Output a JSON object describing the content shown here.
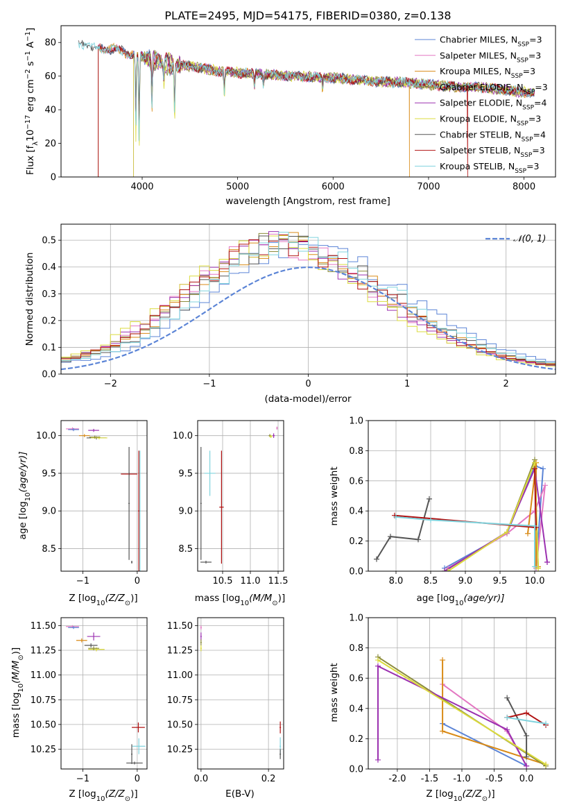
{
  "chart_data": [
    {
      "type": "line",
      "title": "PLATE=2495, MJD=54175, FIBERID=0380, z=0.138",
      "xlabel": "wavelength [Angstrom, rest frame]",
      "ylabel": "Flux [f",
      "ylabel_sub": "λ",
      "ylabel_rest": "10",
      "ylabel_exp": "−17",
      "ylabel_units": " erg cm",
      "ylabel_units_exp1": "−2",
      "ylabel_units_mid": " s",
      "ylabel_units_exp2": "−1",
      "ylabel_units_end": " A",
      "ylabel_units_exp3": "−1",
      "ylabel_units_close": "]",
      "xlim": [
        3150,
        8330
      ],
      "ylim": [
        0,
        90
      ],
      "xticks": [
        4000,
        5000,
        6000,
        7000,
        8000
      ],
      "yticks": [
        0,
        20,
        40,
        60,
        80
      ],
      "grid": false,
      "legend_position": "top-right",
      "series": [
        {
          "name": "Chabrier MILES, N",
          "sub": "SSP",
          "suffix": "=3",
          "color": "#5b84d6",
          "start": 3540
        },
        {
          "name": "Salpeter MILES, N",
          "sub": "SSP",
          "suffix": "=3",
          "color": "#e377c2",
          "start": 3540
        },
        {
          "name": "Kroupa MILES, N",
          "sub": "SSP",
          "suffix": "=3",
          "color": "#d98a16",
          "start": 3540
        },
        {
          "name": "Chabrier ELODIE, N",
          "sub": "SSP",
          "suffix": "=3",
          "color": "#8c8c3c",
          "start": 3910
        },
        {
          "name": "Salpeter ELODIE, N",
          "sub": "SSP",
          "suffix": "=4",
          "color": "#9b30b0",
          "start": 3910
        },
        {
          "name": "Kroupa ELODIE, N",
          "sub": "SSP",
          "suffix": "=3",
          "color": "#dbdb3d",
          "start": 3910
        },
        {
          "name": "Chabrier STELIB, N",
          "sub": "SSP",
          "suffix": "=4",
          "color": "#555555",
          "start": 3330
        },
        {
          "name": "Salpeter STELIB, N",
          "sub": "SSP",
          "suffix": "=3",
          "color": "#b01010",
          "start": 3540
        },
        {
          "name": "Kroupa STELIB, N",
          "sub": "SSP",
          "suffix": "=3",
          "color": "#7fd3dd",
          "start": 3330
        }
      ],
      "continuum": {
        "x": [
          3330,
          3500,
          3700,
          3900,
          4100,
          4300,
          4500,
          4800,
          5000,
          5300,
          5600,
          6000,
          6400,
          6800,
          7200,
          7600,
          7900,
          8100
        ],
        "y": [
          80,
          77,
          76,
          73,
          70,
          67,
          66,
          63,
          62,
          61,
          60,
          59,
          57,
          56,
          54,
          53,
          51,
          50
        ]
      },
      "absorption_lines": [
        {
          "x": 3934,
          "depth": 42
        },
        {
          "x": 3968,
          "depth": 48
        },
        {
          "x": 4102,
          "depth": 25
        },
        {
          "x": 4227,
          "depth": 12
        },
        {
          "x": 4340,
          "depth": 28
        },
        {
          "x": 4861,
          "depth": 12
        },
        {
          "x": 5175,
          "depth": 8
        },
        {
          "x": 5270,
          "depth": 6
        },
        {
          "x": 5890,
          "depth": 7
        }
      ],
      "vertical_drops": [
        {
          "x": 3540,
          "series": [
            0,
            1,
            2,
            7
          ]
        },
        {
          "x": 3910,
          "series": [
            3,
            4,
            5
          ]
        },
        {
          "x": 6800,
          "series": [
            2
          ]
        },
        {
          "x": 7410,
          "series": [
            7
          ]
        }
      ]
    },
    {
      "type": "histogram",
      "xlabel": "(data-model)/error",
      "ylabel": "Normed distribution",
      "xlim": [
        -2.5,
        2.5
      ],
      "ylim": [
        0,
        0.56
      ],
      "xticks": [
        -2,
        -1,
        0,
        1,
        2
      ],
      "yticks": [
        0.0,
        0.1,
        0.2,
        0.3,
        0.4,
        0.5
      ],
      "grid": true,
      "legend_position": "top-right",
      "reference_curve": {
        "name": "𝒩(0, 1)",
        "color": "#5b84d6",
        "mean": 0,
        "std": 1
      },
      "bins": 50,
      "series_colors": [
        "#5b84d6",
        "#e377c2",
        "#d98a16",
        "#8c8c3c",
        "#9b30b0",
        "#dbdb3d",
        "#555555",
        "#b01010",
        "#7fd3dd"
      ],
      "series_shift": [
        -0.05,
        -0.35,
        -0.25,
        -0.3,
        -0.35,
        -0.4,
        -0.2,
        -0.3,
        -0.15
      ]
    },
    {
      "type": "scatter",
      "xlabel": "Z [log",
      "xlabel_sub": "10",
      "xlabel_tail": "(Z/Z",
      "xlabel_tail_sub": "⊙",
      "xlabel_end": ")]",
      "ylabel": "age  [log",
      "ylabel_sub": "10",
      "ylabel_tail": "(age/yr)]",
      "xlim": [
        -1.4,
        0.18
      ],
      "ylim": [
        8.2,
        10.2
      ],
      "xticks": [
        -1,
        0
      ],
      "yticks": [
        8.5,
        9.0,
        9.5,
        10.0
      ],
      "grid": true,
      "points": [
        {
          "x": -1.19,
          "xerr": 0.12,
          "y": 10.09,
          "yerr": 0.02,
          "color": "#e377c2"
        },
        {
          "x": -1.17,
          "xerr": 0.1,
          "y": 10.08,
          "yerr": 0.02,
          "color": "#5b84d6"
        },
        {
          "x": -0.8,
          "xerr": 0.1,
          "y": 10.07,
          "yerr": 0.02,
          "color": "#9b30b0"
        },
        {
          "x": -0.97,
          "xerr": 0.1,
          "y": 10.0,
          "yerr": 0.02,
          "color": "#d98a16"
        },
        {
          "x": -0.75,
          "xerr": 0.18,
          "y": 9.97,
          "yerr": 0.02,
          "color": "#555555"
        },
        {
          "x": -0.7,
          "xerr": 0.15,
          "y": 9.97,
          "yerr": 0.02,
          "color": "#dbdb3d"
        },
        {
          "x": -0.78,
          "xerr": 0.1,
          "y": 9.98,
          "yerr": 0.02,
          "color": "#8c8c3c"
        },
        {
          "x": -0.15,
          "xerr": 0.15,
          "y": 9.49,
          "yerr": 0.0,
          "color": "#b01010"
        },
        {
          "x": -0.15,
          "xerr": 0.0,
          "y": 9.1,
          "yerr": 0.75,
          "color": "#555555"
        },
        {
          "x": 0.05,
          "xerr": 0.0,
          "y": 9.0,
          "yerr": 0.8,
          "color": "#7fd3dd"
        },
        {
          "x": 0.03,
          "xerr": 0.0,
          "y": 9.0,
          "yerr": 0.8,
          "color": "#b01010"
        },
        {
          "x": -0.1,
          "xerr": 0.0,
          "y": 8.32,
          "yerr": 0.0,
          "color": "#555555"
        }
      ]
    },
    {
      "type": "scatter",
      "xlabel": "mass [log",
      "xlabel_sub": "10",
      "xlabel_tail": "(M/M",
      "xlabel_tail_sub": "⊙",
      "xlabel_end": ")]",
      "xlim": [
        10.05,
        11.6
      ],
      "ylim": [
        8.2,
        10.2
      ],
      "xticks": [
        10.5,
        11.0,
        11.5
      ],
      "yticks": [
        8.5,
        9.0,
        9.5,
        10.0
      ],
      "grid": true,
      "points": [
        {
          "x": 11.48,
          "xerr": 0.01,
          "y": 10.1,
          "yerr": 0.02,
          "color": "#e377c2"
        },
        {
          "x": 11.35,
          "xerr": 0.02,
          "y": 10.0,
          "yerr": 0.02,
          "color": "#8c8c3c"
        },
        {
          "x": 11.37,
          "xerr": 0.03,
          "y": 9.99,
          "yerr": 0.02,
          "color": "#dbdb3d"
        },
        {
          "x": 11.42,
          "xerr": 0.02,
          "y": 10.0,
          "yerr": 0.03,
          "color": "#9b30b0"
        },
        {
          "x": 10.27,
          "xerr": 0.1,
          "y": 9.5,
          "yerr": 0.3,
          "color": "#7fd3dd"
        },
        {
          "x": 10.48,
          "xerr": 0.04,
          "y": 9.05,
          "yerr": 0.75,
          "color": "#b01010"
        },
        {
          "x": 10.11,
          "xerr": 0.0,
          "y": 9.1,
          "yerr": 0.75,
          "color": "#555555"
        },
        {
          "x": 10.2,
          "xerr": 0.1,
          "y": 8.32,
          "yerr": 0.0,
          "color": "#555555"
        }
      ]
    },
    {
      "type": "line",
      "xlabel": "age  [log",
      "xlabel_sub": "10",
      "xlabel_tail": "(age/yr)]",
      "ylabel": "mass weight",
      "xlim": [
        7.6,
        10.3
      ],
      "ylim": [
        0,
        1
      ],
      "xticks": [
        8.0,
        8.5,
        9.0,
        9.5,
        10.0
      ],
      "yticks": [
        0.0,
        0.2,
        0.4,
        0.6,
        0.8,
        1.0
      ],
      "grid": true,
      "series": [
        {
          "color": "#5b84d6",
          "x": [
            8.7,
            9.6,
            10.0,
            10.12,
            10.02
          ],
          "y": [
            0.02,
            0.25,
            0.7,
            0.68,
            0.02
          ]
        },
        {
          "color": "#e377c2",
          "x": [
            8.75,
            9.6,
            10.0,
            10.15,
            10.02
          ],
          "y": [
            0.02,
            0.25,
            0.4,
            0.57,
            0.02
          ]
        },
        {
          "color": "#d98a16",
          "x": [
            9.9,
            10.02,
            10.02,
            10.05
          ],
          "y": [
            0.25,
            0.72,
            0.03,
            0.03
          ]
        },
        {
          "color": "#8c8c3c",
          "x": [
            8.7,
            9.6,
            10.0,
            10.05
          ],
          "y": [
            0.0,
            0.26,
            0.74,
            0.02
          ]
        },
        {
          "color": "#9b30b0",
          "x": [
            8.7,
            9.6,
            10.0,
            10.18,
            10.18
          ],
          "y": [
            0.0,
            0.26,
            0.68,
            0.06,
            0.06
          ]
        },
        {
          "color": "#dbdb3d",
          "x": [
            8.75,
            9.6,
            10.0,
            10.05
          ],
          "y": [
            0.0,
            0.26,
            0.72,
            0.02
          ]
        },
        {
          "color": "#555555",
          "x": [
            7.72,
            7.92,
            8.32,
            8.48
          ],
          "y": [
            0.08,
            0.23,
            0.21,
            0.48
          ]
        },
        {
          "color": "#b01010",
          "x": [
            7.98,
            10.02,
            10.0
          ],
          "y": [
            0.37,
            0.29,
            0.68
          ]
        },
        {
          "color": "#7fd3dd",
          "x": [
            8.0,
            8.5,
            10.0,
            10.0
          ],
          "y": [
            0.36,
            0.34,
            0.3,
            0.03
          ]
        }
      ]
    },
    {
      "type": "scatter",
      "xlabel": "Z [log",
      "xlabel_sub": "10",
      "xlabel_tail": "(Z/Z",
      "xlabel_tail_sub": "⊙",
      "xlabel_end": ")]",
      "ylabel": "mass [log",
      "ylabel_sub": "10",
      "ylabel_tail": "(M/M",
      "ylabel_tail_sub": "⊙",
      "ylabel_end": ")]",
      "xlim": [
        -1.4,
        0.18
      ],
      "ylim": [
        10.05,
        11.58
      ],
      "xticks": [
        -1,
        0
      ],
      "yticks": [
        10.25,
        10.5,
        10.75,
        11.0,
        11.25,
        11.5
      ],
      "grid": true,
      "points": [
        {
          "x": -1.19,
          "xerr": 0.12,
          "y": 11.49,
          "yerr": 0.01,
          "color": "#e377c2"
        },
        {
          "x": -1.17,
          "xerr": 0.1,
          "y": 11.48,
          "yerr": 0.01,
          "color": "#5b84d6"
        },
        {
          "x": -0.8,
          "xerr": 0.12,
          "y": 11.39,
          "yerr": 0.04,
          "color": "#9b30b0"
        },
        {
          "x": -1.02,
          "xerr": 0.1,
          "y": 11.35,
          "yerr": 0.02,
          "color": "#d98a16"
        },
        {
          "x": -0.85,
          "xerr": 0.12,
          "y": 11.3,
          "yerr": 0.02,
          "color": "#555555"
        },
        {
          "x": -0.75,
          "xerr": 0.15,
          "y": 11.26,
          "yerr": 0.02,
          "color": "#dbdb3d"
        },
        {
          "x": -0.8,
          "xerr": 0.1,
          "y": 11.27,
          "yerr": 0.02,
          "color": "#8c8c3c"
        },
        {
          "x": 0.02,
          "xerr": 0.12,
          "y": 10.47,
          "yerr": 0.05,
          "color": "#b01010"
        },
        {
          "x": 0.03,
          "xerr": 0.12,
          "y": 10.28,
          "yerr": 0.08,
          "color": "#7fd3dd"
        },
        {
          "x": -0.05,
          "xerr": 0.15,
          "y": 10.11,
          "yerr": 0.0,
          "color": "#555555"
        },
        {
          "x": -0.1,
          "xerr": 0.0,
          "y": 10.2,
          "yerr": 0.1,
          "color": "#555555"
        }
      ]
    },
    {
      "type": "scatter",
      "xlabel": "E(B-V)",
      "xlim": [
        -0.01,
        0.245
      ],
      "ylim": [
        10.05,
        11.58
      ],
      "xticks": [
        0.0,
        0.2
      ],
      "yticks": [
        10.25,
        10.5,
        10.75,
        11.0,
        11.25,
        11.5
      ],
      "grid": true,
      "points": [
        {
          "x": 0.0,
          "xerr": 0.0,
          "y": 11.39,
          "yerr": 0.04,
          "color": "#9b30b0"
        },
        {
          "x": 0.0,
          "xerr": 0.0,
          "y": 11.33,
          "yerr": 0.03,
          "color": "#8c8c3c"
        },
        {
          "x": 0.0,
          "xerr": 0.0,
          "y": 11.27,
          "yerr": 0.03,
          "color": "#dbdb3d"
        },
        {
          "x": 0.0,
          "xerr": 0.0,
          "y": 11.48,
          "yerr": 0.02,
          "color": "#e377c2"
        },
        {
          "x": 0.235,
          "xerr": 0.0,
          "y": 10.47,
          "yerr": 0.06,
          "color": "#b01010"
        },
        {
          "x": 0.235,
          "xerr": 0.0,
          "y": 10.28,
          "yerr": 0.09,
          "color": "#7fd3dd"
        },
        {
          "x": 0.235,
          "xerr": 0.0,
          "y": 10.2,
          "yerr": 0.05,
          "color": "#555555"
        }
      ]
    },
    {
      "type": "line",
      "xlabel": "Z [log",
      "xlabel_sub": "10",
      "xlabel_tail": "(Z/Z",
      "xlabel_tail_sub": "⊙",
      "xlabel_end": ")]",
      "ylabel": "mass weight",
      "xlim": [
        -2.45,
        0.45
      ],
      "ylim": [
        0,
        1
      ],
      "xticks": [
        -2.0,
        -1.5,
        -1.0,
        -0.5,
        0.0
      ],
      "yticks": [
        0.0,
        0.2,
        0.4,
        0.6,
        0.8,
        1.0
      ],
      "grid": true,
      "series": [
        {
          "color": "#5b84d6",
          "x": [
            -1.3,
            0.0
          ],
          "y": [
            0.3,
            0.02
          ]
        },
        {
          "color": "#e377c2",
          "x": [
            -1.3,
            -0.3,
            0.0
          ],
          "y": [
            0.56,
            0.25,
            0.02
          ]
        },
        {
          "color": "#d98a16",
          "x": [
            -1.3,
            -1.3,
            0.3
          ],
          "y": [
            0.72,
            0.25,
            0.03
          ]
        },
        {
          "color": "#8c8c3c",
          "x": [
            -2.3,
            0.3
          ],
          "y": [
            0.74,
            0.02
          ]
        },
        {
          "color": "#9b30b0",
          "x": [
            -2.3,
            -2.3,
            -0.3,
            0.0
          ],
          "y": [
            0.06,
            0.68,
            0.26,
            0.02
          ]
        },
        {
          "color": "#dbdb3d",
          "x": [
            -2.3,
            0.3
          ],
          "y": [
            0.72,
            0.03
          ]
        },
        {
          "color": "#555555",
          "x": [
            -0.3,
            0.0,
            0.0
          ],
          "y": [
            0.47,
            0.22,
            0.08
          ]
        },
        {
          "color": "#b01010",
          "x": [
            -0.3,
            0.0,
            0.3
          ],
          "y": [
            0.34,
            0.37,
            0.29
          ]
        },
        {
          "color": "#7fd3dd",
          "x": [
            -0.3,
            0.3
          ],
          "y": [
            0.34,
            0.3
          ]
        }
      ]
    }
  ]
}
